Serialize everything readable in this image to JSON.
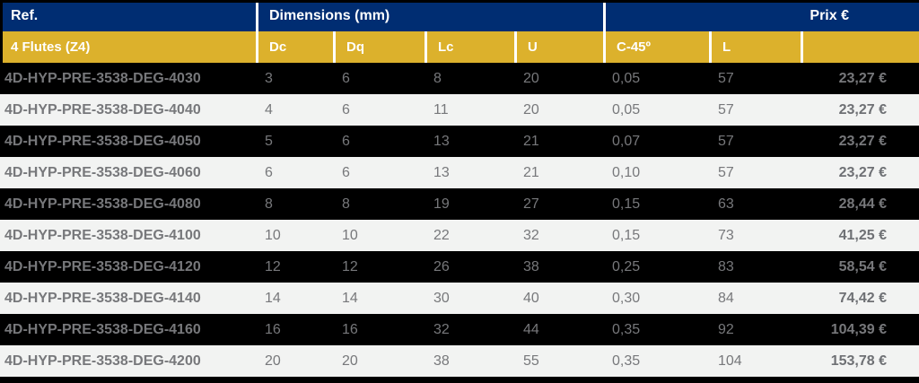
{
  "table": {
    "header_groups": {
      "ref": "Ref.",
      "dimensions": "Dimensions (mm)",
      "prix": "Prix €"
    },
    "columns": [
      {
        "key": "ref",
        "label": "4 Flutes (Z4)"
      },
      {
        "key": "dc",
        "label": "Dc"
      },
      {
        "key": "dq",
        "label": "Dq"
      },
      {
        "key": "lc",
        "label": "Lc"
      },
      {
        "key": "u",
        "label": "U"
      },
      {
        "key": "c45",
        "label": "C-45º"
      },
      {
        "key": "l",
        "label": "L"
      },
      {
        "key": "price",
        "label": ""
      }
    ],
    "rows": [
      {
        "ref": "4D-HYP-PRE-3538-DEG-4030",
        "dc": "3",
        "dq": "6",
        "lc": "8",
        "u": "20",
        "c45": "0,05",
        "l": "57",
        "price": "23,27 €"
      },
      {
        "ref": "4D-HYP-PRE-3538-DEG-4040",
        "dc": "4",
        "dq": "6",
        "lc": "11",
        "u": "20",
        "c45": "0,05",
        "l": "57",
        "price": "23,27 €"
      },
      {
        "ref": "4D-HYP-PRE-3538-DEG-4050",
        "dc": "5",
        "dq": "6",
        "lc": "13",
        "u": "21",
        "c45": "0,07",
        "l": "57",
        "price": "23,27 €"
      },
      {
        "ref": "4D-HYP-PRE-3538-DEG-4060",
        "dc": "6",
        "dq": "6",
        "lc": "13",
        "u": "21",
        "c45": "0,10",
        "l": "57",
        "price": "23,27 €"
      },
      {
        "ref": "4D-HYP-PRE-3538-DEG-4080",
        "dc": "8",
        "dq": "8",
        "lc": "19",
        "u": "27",
        "c45": "0,15",
        "l": "63",
        "price": "28,44 €"
      },
      {
        "ref": "4D-HYP-PRE-3538-DEG-4100",
        "dc": "10",
        "dq": "10",
        "lc": "22",
        "u": "32",
        "c45": "0,15",
        "l": "73",
        "price": "41,25 €"
      },
      {
        "ref": "4D-HYP-PRE-3538-DEG-4120",
        "dc": "12",
        "dq": "12",
        "lc": "26",
        "u": "38",
        "c45": "0,25",
        "l": "83",
        "price": "58,54 €"
      },
      {
        "ref": "4D-HYP-PRE-3538-DEG-4140",
        "dc": "14",
        "dq": "14",
        "lc": "30",
        "u": "40",
        "c45": "0,30",
        "l": "84",
        "price": "74,42 €"
      },
      {
        "ref": "4D-HYP-PRE-3538-DEG-4160",
        "dc": "16",
        "dq": "16",
        "lc": "32",
        "u": "44",
        "c45": "0,35",
        "l": "92",
        "price": "104,39 €"
      },
      {
        "ref": "4D-HYP-PRE-3538-DEG-4200",
        "dc": "20",
        "dq": "20",
        "lc": "38",
        "u": "55",
        "c45": "0,35",
        "l": "104",
        "price": "153,78 €"
      }
    ]
  },
  "colors": {
    "header_blue": "#002d72",
    "header_gold": "#dcb12c",
    "row_dark": "#000000",
    "row_light": "#f2f3f2",
    "data_text_gray": "#77787b",
    "header_text": "#ffffff",
    "divider_white": "#ffffff",
    "border_black": "#000000"
  }
}
